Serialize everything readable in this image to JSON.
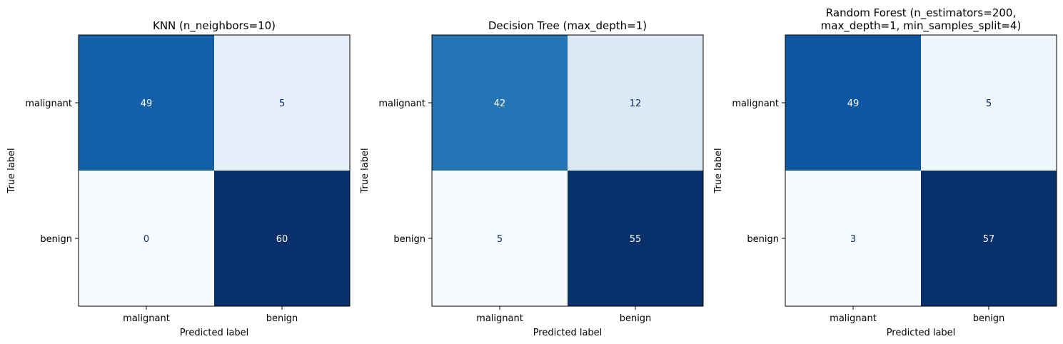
{
  "chart_data": [
    {
      "type": "heatmap",
      "title": [
        "KNN (n_neighbors=10)"
      ],
      "xlabel": "Predicted label",
      "ylabel": "True label",
      "x_categories": [
        "malignant",
        "benign"
      ],
      "y_categories": [
        "malignant",
        "benign"
      ],
      "matrix": [
        [
          49,
          5
        ],
        [
          0,
          60
        ]
      ],
      "colormap": "Blues",
      "color_range": [
        0,
        60
      ]
    },
    {
      "type": "heatmap",
      "title": [
        "Decision Tree (max_depth=1)"
      ],
      "xlabel": "Predicted label",
      "ylabel": "True label",
      "x_categories": [
        "malignant",
        "benign"
      ],
      "y_categories": [
        "malignant",
        "benign"
      ],
      "matrix": [
        [
          42,
          12
        ],
        [
          5,
          55
        ]
      ],
      "colormap": "Blues",
      "color_range": [
        5,
        55
      ]
    },
    {
      "type": "heatmap",
      "title": [
        "Random Forest (n_estimators=200,",
        "max_depth=1, min_samples_split=4)"
      ],
      "xlabel": "Predicted label",
      "ylabel": "True label",
      "x_categories": [
        "malignant",
        "benign"
      ],
      "y_categories": [
        "malignant",
        "benign"
      ],
      "matrix": [
        [
          49,
          5
        ],
        [
          3,
          57
        ]
      ],
      "colormap": "Blues",
      "color_range": [
        3,
        57
      ]
    }
  ]
}
